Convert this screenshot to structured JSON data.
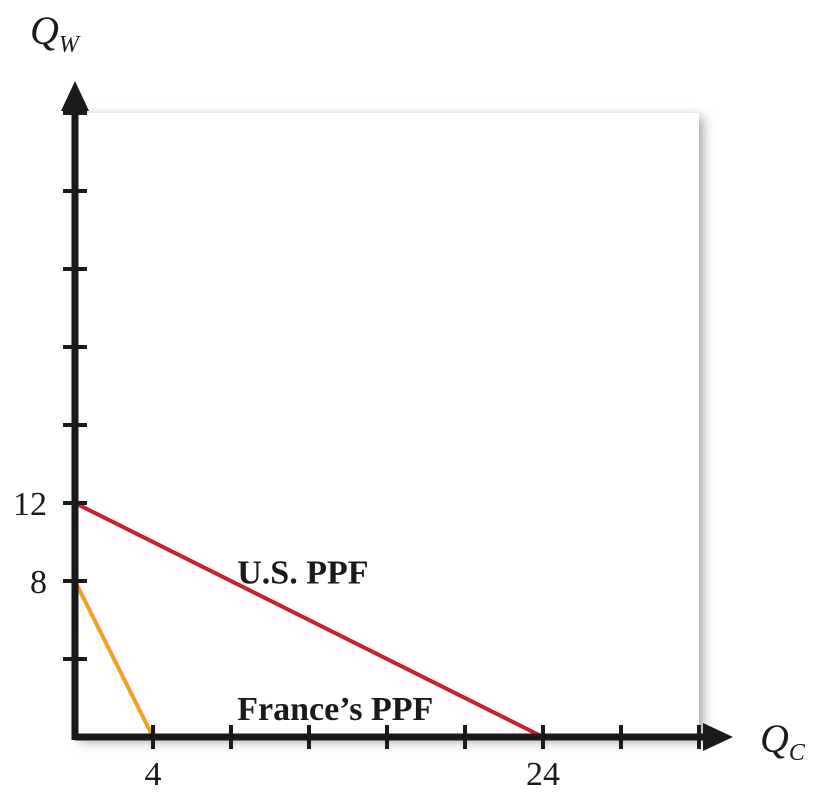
{
  "chart_data": {
    "type": "line",
    "title": "",
    "xlabel": "Q",
    "xlabel_sub": "C",
    "ylabel": "Q",
    "ylabel_sub": "W",
    "xlim": [
      0,
      32
    ],
    "ylim": [
      0,
      32
    ],
    "x_tick_count": 8,
    "y_tick_count": 8,
    "x_tick_labels": [
      {
        "value": 4,
        "label": "4"
      },
      {
        "value": 24,
        "label": "24"
      }
    ],
    "y_tick_labels": [
      {
        "value": 12,
        "label": "12"
      },
      {
        "value": 8,
        "label": "8"
      }
    ],
    "grid": false,
    "series": [
      {
        "name": "U.S. PPF",
        "color": "#cc1f2e",
        "points": [
          [
            0,
            12
          ],
          [
            24,
            0
          ]
        ],
        "label_at": [
          11.5,
          8.5
        ]
      },
      {
        "name": "France’s PPF",
        "color": "#f2a024",
        "points": [
          [
            0,
            8
          ],
          [
            4,
            0
          ]
        ],
        "label_at": [
          11.5,
          1.5
        ]
      }
    ],
    "colors": {
      "axis": "#1a1a1a",
      "panel": "#ffffff",
      "shadow": "#a0a0a0"
    }
  }
}
